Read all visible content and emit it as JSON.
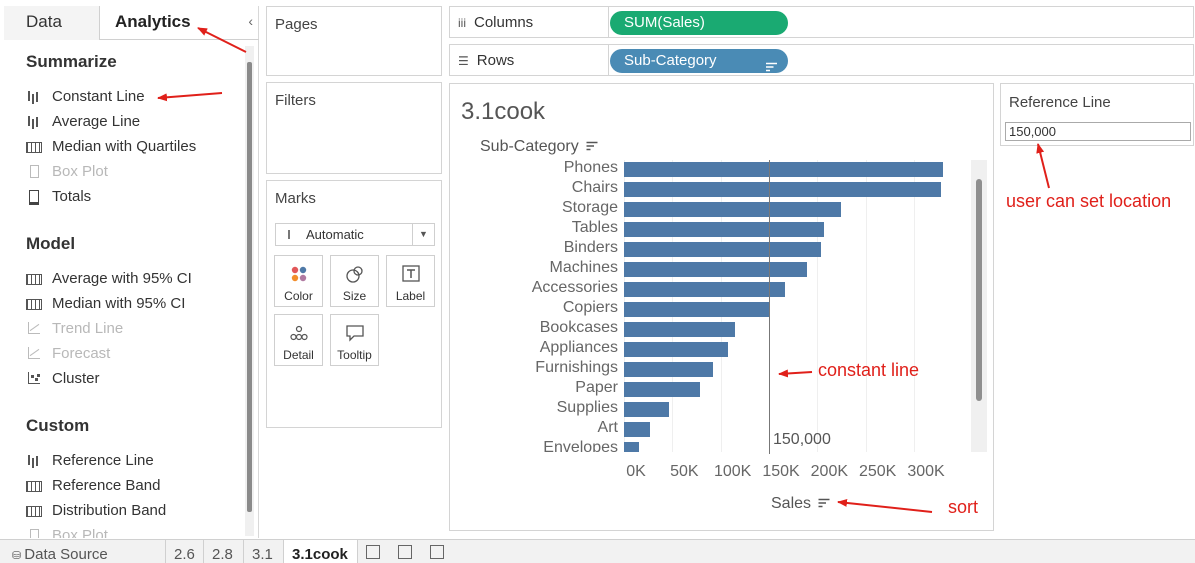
{
  "left_pane": {
    "tabs": [
      "Data",
      "Analytics"
    ],
    "active_tab": "Analytics",
    "sections": [
      {
        "title": "Summarize",
        "items": [
          {
            "label": "Constant Line",
            "icon": "bar-icon",
            "enabled": true
          },
          {
            "label": "Average Line",
            "icon": "bar-icon",
            "enabled": true
          },
          {
            "label": "Median with Quartiles",
            "icon": "grid-icon",
            "enabled": true
          },
          {
            "label": "Box Plot",
            "icon": "box-plot-icon",
            "enabled": false
          },
          {
            "label": "Totals",
            "icon": "totals-icon",
            "enabled": true
          }
        ]
      },
      {
        "title": "Model",
        "items": [
          {
            "label": "Average with 95% CI",
            "icon": "grid-icon",
            "enabled": true
          },
          {
            "label": "Median with 95% CI",
            "icon": "grid-icon",
            "enabled": true
          },
          {
            "label": "Trend Line",
            "icon": "trend-line-icon",
            "enabled": false
          },
          {
            "label": "Forecast",
            "icon": "forecast-icon",
            "enabled": false
          },
          {
            "label": "Cluster",
            "icon": "cluster-icon",
            "enabled": true
          }
        ]
      },
      {
        "title": "Custom",
        "items": [
          {
            "label": "Reference Line",
            "icon": "bar-icon",
            "enabled": true
          },
          {
            "label": "Reference Band",
            "icon": "grid-icon",
            "enabled": true
          },
          {
            "label": "Distribution Band",
            "icon": "grid-icon",
            "enabled": true
          },
          {
            "label": "Box Plot",
            "icon": "box-plot-icon",
            "enabled": false
          }
        ]
      }
    ]
  },
  "cards": {
    "pages": "Pages",
    "filters": "Filters",
    "marks": "Marks"
  },
  "marks": {
    "type": "Automatic",
    "buttons": [
      "Color",
      "Size",
      "Label",
      "Detail",
      "Tooltip"
    ]
  },
  "shelves": {
    "columns": {
      "label": "Columns",
      "pill": "SUM(Sales)"
    },
    "rows": {
      "label": "Rows",
      "pill": "Sub-Category"
    }
  },
  "worksheet": {
    "title": "3.1cook"
  },
  "reference_panel": {
    "title": "Reference Line",
    "value": "150,000"
  },
  "chart_data": {
    "type": "bar",
    "orientation": "horizontal",
    "row_header": "Sub-Category",
    "categories": [
      "Phones",
      "Chairs",
      "Storage",
      "Tables",
      "Binders",
      "Machines",
      "Accessories",
      "Copiers",
      "Bookcases",
      "Appliances",
      "Furnishings",
      "Paper",
      "Supplies",
      "Art",
      "Envelopes"
    ],
    "values": [
      330000,
      328000,
      224000,
      207000,
      204000,
      189000,
      167000,
      150000,
      115000,
      108000,
      92000,
      79000,
      47000,
      27000,
      16000
    ],
    "xlabel": "Sales",
    "xticks": [
      "0K",
      "50K",
      "100K",
      "150K",
      "200K",
      "250K",
      "300K"
    ],
    "xlim": [
      0,
      350000
    ],
    "reference_line": {
      "value": 150000,
      "label": "150,000"
    },
    "grid": true,
    "bar_color": "#4e79a7"
  },
  "annotations": {
    "constant_line": "constant line",
    "user_set": "user can set location",
    "sort": "sort"
  },
  "bottom_tabs": [
    {
      "label": "Data Source",
      "active": false
    },
    {
      "label": "2.6",
      "active": false
    },
    {
      "label": "2.8",
      "active": false
    },
    {
      "label": "3.1",
      "active": false
    },
    {
      "label": "3.1cook",
      "active": true
    }
  ],
  "colors": {
    "accent": "#1aaa72",
    "pill_blue": "#4a8bb5",
    "annotation": "#e0201a"
  }
}
